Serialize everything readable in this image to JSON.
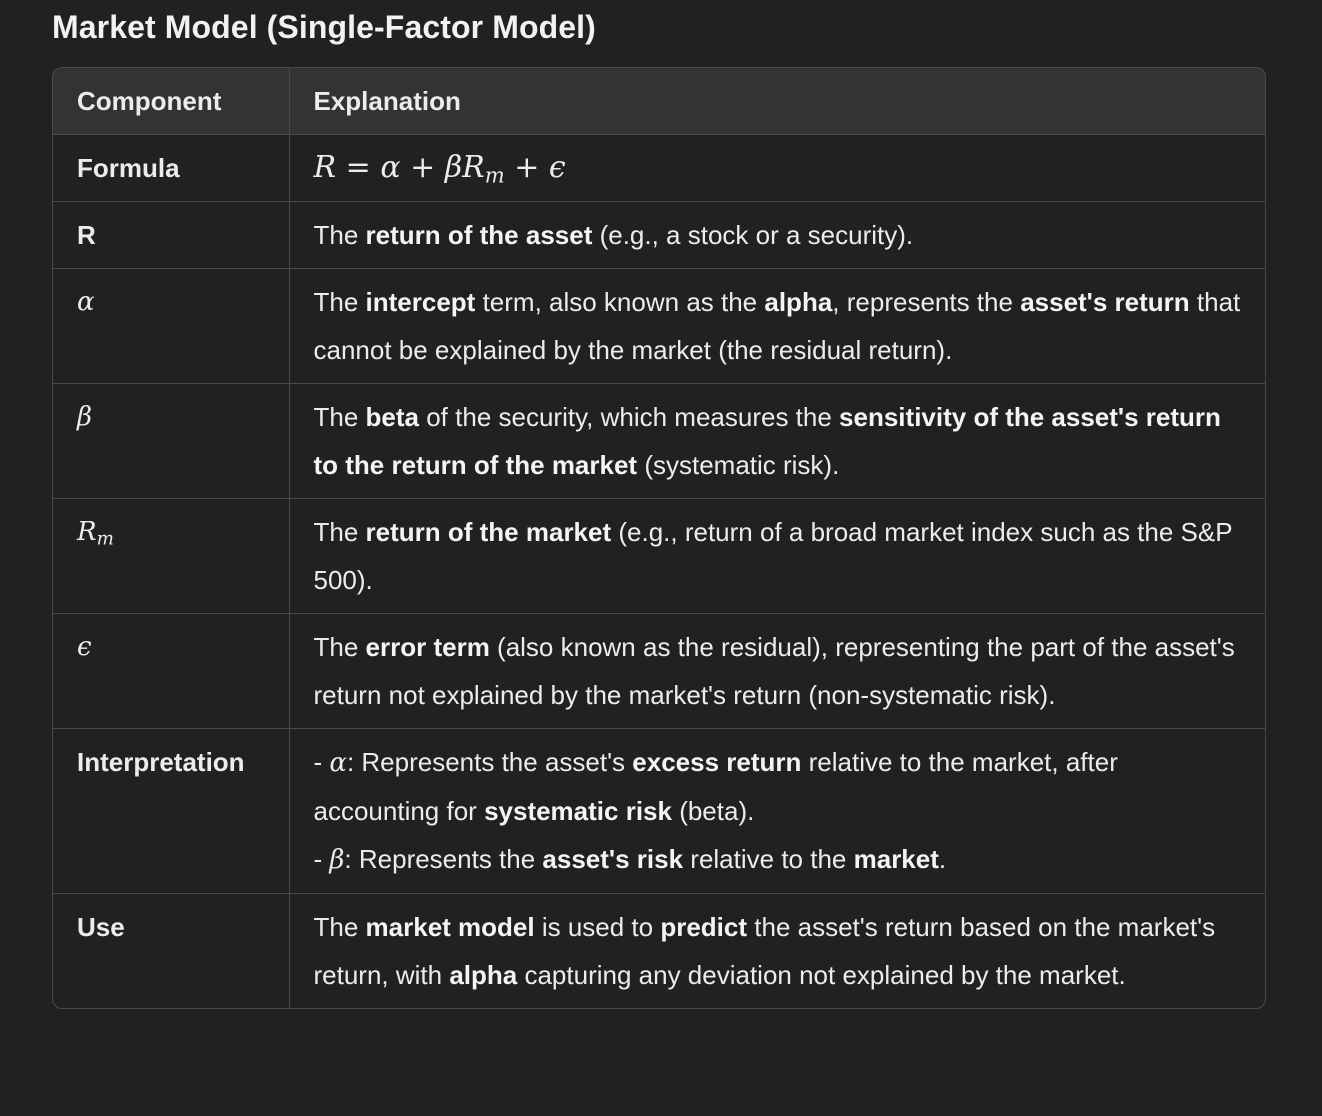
{
  "title": "Market Model (Single-Factor Model)",
  "table": {
    "headers": [
      "Component",
      "Explanation"
    ],
    "rows": {
      "formula": {
        "label": "Formula",
        "expr": {
          "lhs": "R",
          "eq": "=",
          "a": "α",
          "plus1": "+",
          "b": "β",
          "rm_base": "R",
          "rm_sub": "m",
          "plus2": "+",
          "eps": "ϵ"
        }
      },
      "r": {
        "label": "R",
        "t1": "The ",
        "b1": "return of the asset",
        "t2": " (e.g., a stock or a security)."
      },
      "alpha": {
        "label": "α",
        "t1": "The ",
        "b1": "intercept",
        "t2": " term, also known as the ",
        "b2": "alpha",
        "t3": ", represents the ",
        "b3": "asset's return",
        "t4": " that cannot be explained by the market (the residual return)."
      },
      "beta": {
        "label": "β",
        "t1": "The ",
        "b1": "beta",
        "t2": " of the security, which measures the ",
        "b2": "sensitivity of the asset's return to the return of the market",
        "t3": " (systematic risk)."
      },
      "rm": {
        "label_base": "R",
        "label_sub": "m",
        "t1": "The ",
        "b1": "return of the market",
        "t2": " (e.g., return of a broad market index such as the S&P 500)."
      },
      "epsilon": {
        "label": "ϵ",
        "t1": "The ",
        "b1": "error term",
        "t2": " (also known as the residual), representing the part of the asset's return not explained by the market's return (non-systematic risk)."
      },
      "interpretation": {
        "label": "Interpretation",
        "l1_dash": "- ",
        "l1_sym": "α",
        "l1_t1": ": Represents the asset's ",
        "l1_b1": "excess return",
        "l1_t2": " relative to the market, after accounting for ",
        "l1_b2": "systematic risk",
        "l1_t3": " (beta).",
        "l2_dash": "- ",
        "l2_sym": "β",
        "l2_t1": ": Represents the ",
        "l2_b1": "asset's risk",
        "l2_t2": " relative to the ",
        "l2_b2": "market",
        "l2_t3": "."
      },
      "use": {
        "label": "Use",
        "t1": "The ",
        "b1": "market model",
        "t2": " is used to ",
        "b2": "predict",
        "t3": " the asset's return based on the market's return, with ",
        "b3": "alpha",
        "t4": " capturing any deviation not explained by the market."
      }
    }
  }
}
